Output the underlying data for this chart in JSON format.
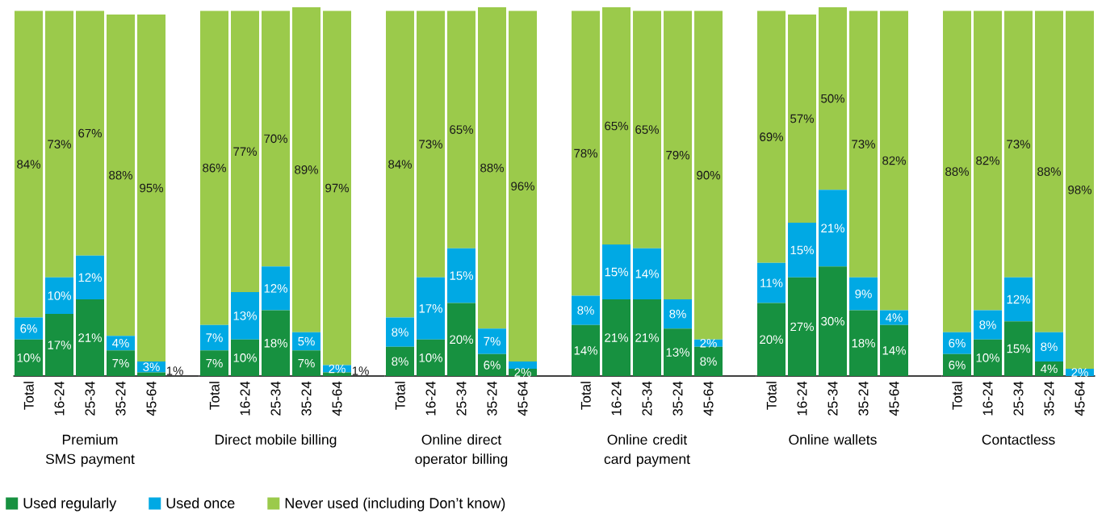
{
  "chart_data": [
    {
      "type": "bar",
      "stacked": true,
      "xlabel": "Premium SMS payment",
      "categories": [
        "Total",
        "16-24",
        "25-34",
        "35-24",
        "45-64"
      ],
      "tick_labels": "x",
      "legend": "bottom",
      "series": [
        {
          "name": "Used regularly",
          "color": "#179140",
          "values": [
            10,
            17,
            21,
            7,
            1
          ],
          "value_labels": [
            "10%",
            "17%",
            "21%",
            "7%",
            "1%"
          ]
        },
        {
          "name": "Used once",
          "color": "#00a9e4",
          "values": [
            6,
            10,
            12,
            4,
            3
          ],
          "value_labels": [
            "6%",
            "10%",
            "12%",
            "4%",
            "3%"
          ]
        },
        {
          "name": "Never used (including Don’t know)",
          "color": "#9bca4b",
          "values": [
            84,
            73,
            67,
            88,
            95
          ],
          "value_labels": [
            "84%",
            "73%",
            "67%",
            "88%",
            "95%"
          ]
        }
      ]
    },
    {
      "type": "bar",
      "stacked": true,
      "xlabel": "Direct mobile billing",
      "categories": [
        "Total",
        "16-24",
        "25-34",
        "35-24",
        "45-64"
      ],
      "tick_labels": "x",
      "series": [
        {
          "color": "#179140",
          "values": [
            7,
            10,
            18,
            7,
            1
          ],
          "value_labels": [
            "7%",
            "10%",
            "18%",
            "7%",
            "1%"
          ]
        },
        {
          "color": "#00a9e4",
          "values": [
            7,
            13,
            12,
            5,
            2
          ],
          "value_labels": [
            "7%",
            "13%",
            "12%",
            "5%",
            "2%"
          ]
        },
        {
          "color": "#9bca4b",
          "values": [
            86,
            77,
            70,
            89,
            97
          ],
          "value_labels": [
            "86%",
            "77%",
            "70%",
            "89%",
            "97%"
          ]
        }
      ]
    },
    {
      "type": "bar",
      "stacked": true,
      "xlabel": "Online direct operator billing",
      "categories": [
        "Total",
        "16-24",
        "25-34",
        "35-24",
        "45-64"
      ],
      "tick_labels": "x",
      "series": [
        {
          "color": "#179140",
          "values": [
            8,
            10,
            20,
            6,
            2
          ],
          "value_labels": [
            "8%",
            "10%",
            "20%",
            "6%",
            "2%"
          ]
        },
        {
          "color": "#00a9e4",
          "values": [
            8,
            17,
            15,
            7,
            2
          ],
          "value_labels": [
            "8%",
            "17%",
            "15%",
            "7%",
            null
          ]
        },
        {
          "color": "#9bca4b",
          "values": [
            84,
            73,
            65,
            88,
            96
          ],
          "value_labels": [
            "84%",
            "73%",
            "65%",
            "88%",
            "96%"
          ]
        }
      ]
    },
    {
      "type": "bar",
      "stacked": true,
      "xlabel": "Online credit card payment",
      "categories": [
        "Total",
        "16-24",
        "25-34",
        "35-24",
        "45-64"
      ],
      "tick_labels": "x",
      "series": [
        {
          "color": "#179140",
          "values": [
            14,
            21,
            21,
            13,
            8
          ],
          "value_labels": [
            "14%",
            "21%",
            "21%",
            "13%",
            "8%"
          ]
        },
        {
          "color": "#00a9e4",
          "values": [
            8,
            15,
            14,
            8,
            2
          ],
          "value_labels": [
            "8%",
            "15%",
            "14%",
            "8%",
            "2%"
          ]
        },
        {
          "color": "#9bca4b",
          "values": [
            78,
            65,
            65,
            79,
            90
          ],
          "value_labels": [
            "78%",
            "65%",
            "65%",
            "79%",
            "90%"
          ]
        }
      ]
    },
    {
      "type": "bar",
      "stacked": true,
      "xlabel": "Online wallets",
      "categories": [
        "Total",
        "16-24",
        "25-34",
        "35-24",
        "45-64"
      ],
      "tick_labels": "x",
      "series": [
        {
          "color": "#179140",
          "values": [
            20,
            27,
            30,
            18,
            14
          ],
          "value_labels": [
            "20%",
            "27%",
            "30%",
            "18%",
            "14%"
          ]
        },
        {
          "color": "#00a9e4",
          "values": [
            11,
            15,
            21,
            9,
            4
          ],
          "value_labels": [
            "11%",
            "15%",
            "21%",
            "9%",
            "4%"
          ]
        },
        {
          "color": "#9bca4b",
          "values": [
            69,
            57,
            50,
            73,
            82
          ],
          "value_labels": [
            "69%",
            "57%",
            "50%",
            "73%",
            "82%"
          ]
        }
      ]
    },
    {
      "type": "bar",
      "stacked": true,
      "xlabel": "Contactless",
      "categories": [
        "Total",
        "16-24",
        "25-34",
        "35-24",
        "45-64"
      ],
      "tick_labels": "x",
      "series": [
        {
          "color": "#179140",
          "values": [
            6,
            10,
            15,
            4,
            0
          ],
          "value_labels": [
            "6%",
            "10%",
            "15%",
            "4%",
            null
          ]
        },
        {
          "color": "#00a9e4",
          "values": [
            6,
            8,
            12,
            8,
            2
          ],
          "value_labels": [
            "6%",
            "8%",
            "12%",
            "8%",
            "2%"
          ]
        },
        {
          "color": "#9bca4b",
          "values": [
            88,
            82,
            73,
            88,
            98
          ],
          "value_labels": [
            "88%",
            "82%",
            "73%",
            "88%",
            "98%"
          ]
        }
      ]
    }
  ]
}
